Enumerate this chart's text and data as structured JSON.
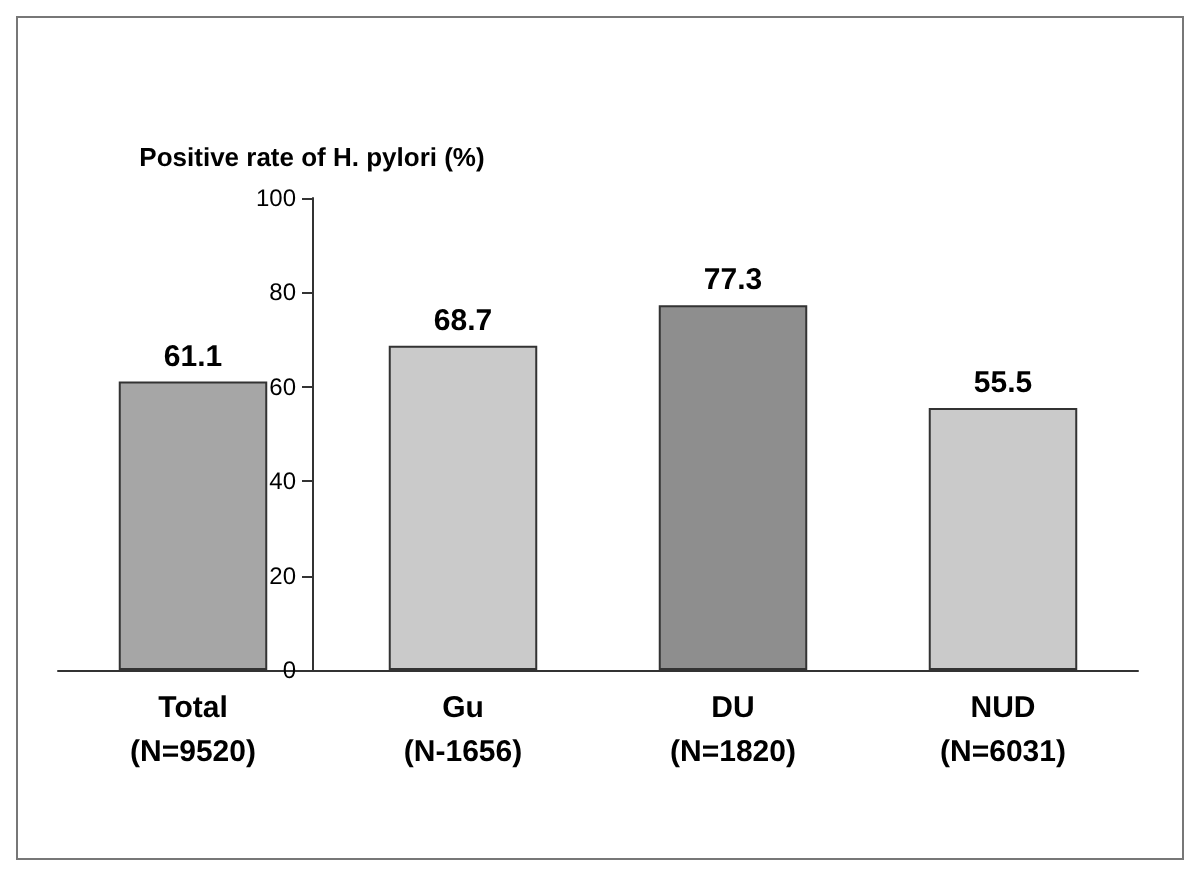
{
  "chart_data": {
    "type": "bar",
    "ylabel": "Positive rate of H. pylori (%)",
    "categories": [
      "Total\n(N=9520)",
      "Gu\n(N-1656)",
      "DU\n(N=1820)",
      "NUD\n(N=6031)"
    ],
    "values": [
      61.1,
      68.7,
      77.3,
      55.5
    ],
    "colors": [
      "#a6a6a6",
      "#cacaca",
      "#8e8e8e",
      "#cacaca"
    ],
    "ylim": [
      0,
      100
    ],
    "yticks": [
      0,
      20,
      40,
      60,
      80,
      100
    ],
    "grid": false,
    "data_labels": true
  }
}
